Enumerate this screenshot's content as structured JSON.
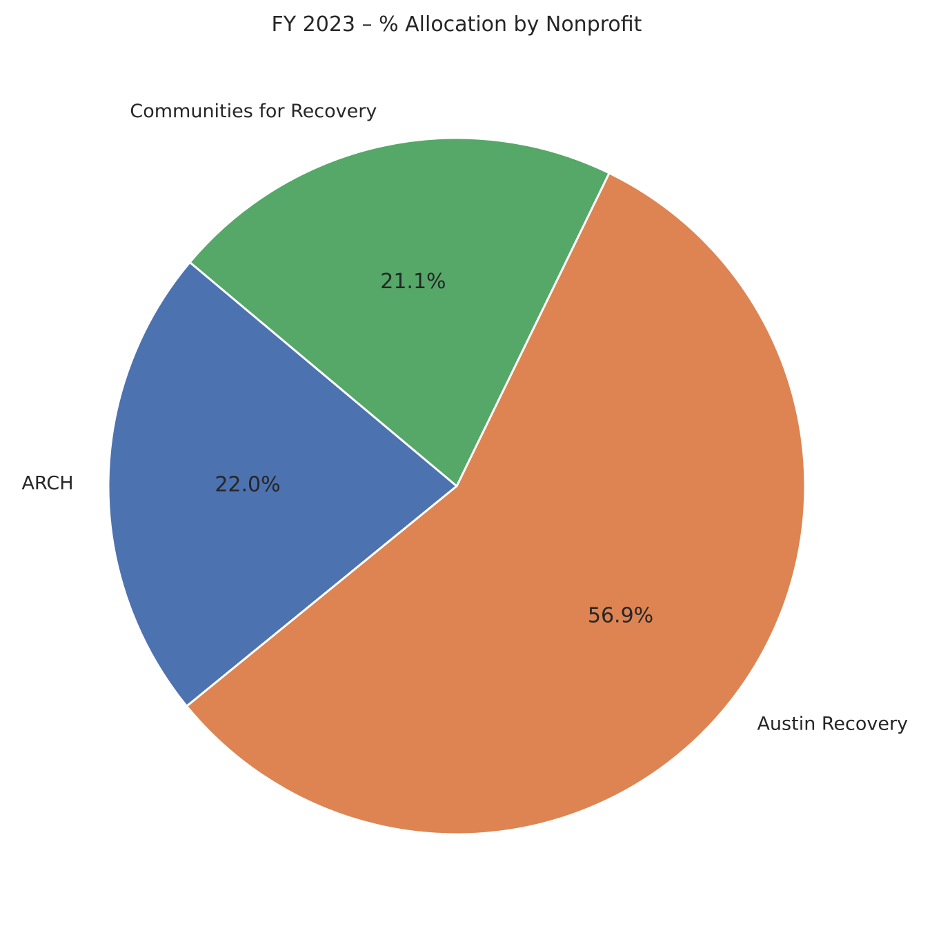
{
  "chart_data": {
    "type": "pie",
    "title": "FY 2023 – % Allocation by Nonprofit",
    "start_angle_deg": 140,
    "direction": "counterclockwise",
    "slices": [
      {
        "label": "ARCH",
        "value": 22.0,
        "pct_label": "22.0%",
        "color": "#4C72B0"
      },
      {
        "label": "Austin Recovery",
        "value": 56.9,
        "pct_label": "56.9%",
        "color": "#DD8452"
      },
      {
        "label": "Communities for Recovery",
        "value": 21.1,
        "pct_label": "21.1%",
        "color": "#55A868"
      }
    ]
  }
}
